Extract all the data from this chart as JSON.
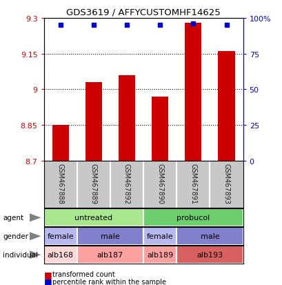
{
  "title": "GDS3619 / AFFYCUSTOMHF14625",
  "samples": [
    "GSM467888",
    "GSM467889",
    "GSM467892",
    "GSM467890",
    "GSM467891",
    "GSM467893"
  ],
  "bar_values": [
    8.85,
    9.03,
    9.06,
    8.97,
    9.28,
    9.16
  ],
  "percentile_values": [
    95,
    95,
    95,
    95,
    96,
    95
  ],
  "ylim_left": [
    8.7,
    9.3
  ],
  "ylim_right": [
    0,
    100
  ],
  "yticks_left": [
    8.7,
    8.85,
    9.0,
    9.15,
    9.3
  ],
  "yticks_right": [
    0,
    25,
    50,
    75,
    100
  ],
  "ytick_labels_left": [
    "8.7",
    "8.85",
    "9",
    "9.15",
    "9.3"
  ],
  "ytick_labels_right": [
    "0",
    "25",
    "50",
    "75",
    "100%"
  ],
  "hlines": [
    8.85,
    9.0,
    9.15
  ],
  "bar_color": "#cc0000",
  "dot_color": "#0000cc",
  "bar_bottom": 8.7,
  "agent_labels": [
    [
      "untreated",
      0,
      3
    ],
    [
      "probucol",
      3,
      6
    ]
  ],
  "agent_colors": [
    "#aae890",
    "#6dce6d"
  ],
  "gender_labels": [
    [
      "female",
      0,
      1
    ],
    [
      "male",
      1,
      3
    ],
    [
      "female",
      3,
      4
    ],
    [
      "male",
      4,
      6
    ]
  ],
  "gender_colors": [
    "#b8b8f0",
    "#8080cc",
    "#b8b8f0",
    "#8080cc"
  ],
  "individual_labels": [
    [
      "alb168",
      0,
      1
    ],
    [
      "alb187",
      1,
      3
    ],
    [
      "alb189",
      3,
      4
    ],
    [
      "alb193",
      4,
      6
    ]
  ],
  "individual_colors": [
    "#fcd8d8",
    "#fca0a0",
    "#fca0a0",
    "#d96060"
  ],
  "sample_bg_color": "#c8c8c8",
  "sample_label_color": "#202020",
  "left_axis_color": "#cc0000",
  "right_axis_color": "#0000cc",
  "legend_red_label": "transformed count",
  "legend_blue_label": "percentile rank within the sample",
  "row_labels": [
    "agent",
    "gender",
    "individual"
  ],
  "arrow_color": "#808080"
}
